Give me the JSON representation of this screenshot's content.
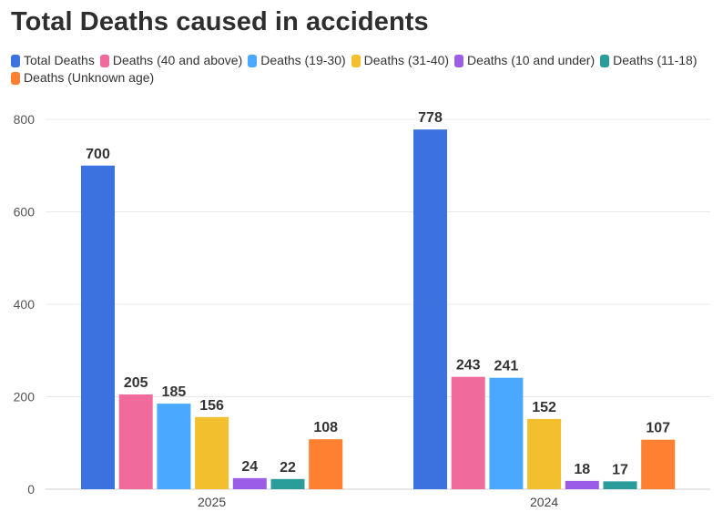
{
  "chart_data": {
    "type": "bar",
    "title": "Total Deaths caused in accidents",
    "xlabel": "",
    "ylabel": "",
    "ylim": [
      0,
      800
    ],
    "yticks": [
      0,
      200,
      400,
      600,
      800
    ],
    "tick_labels": [
      "0",
      "200",
      "400",
      "600",
      "800"
    ],
    "categories": [
      "2025",
      "2024"
    ],
    "legend_position": "top-left",
    "grid": true,
    "series": [
      {
        "name": "Total Deaths",
        "color": "#3b72e0",
        "values": [
          700,
          778
        ],
        "labels": [
          "700",
          "778"
        ]
      },
      {
        "name": "Deaths (40 and above)",
        "color": "#f06a9b",
        "values": [
          205,
          243
        ],
        "labels": [
          "205",
          "243"
        ]
      },
      {
        "name": "Deaths (19-30)",
        "color": "#4aa8ff",
        "values": [
          185,
          241
        ],
        "labels": [
          "185",
          "241"
        ]
      },
      {
        "name": "Deaths (31-40)",
        "color": "#f2c02e",
        "values": [
          156,
          152
        ],
        "labels": [
          "156",
          "152"
        ]
      },
      {
        "name": "Deaths (10 and under)",
        "color": "#9b5de5",
        "values": [
          24,
          18
        ],
        "labels": [
          "24",
          "18"
        ]
      },
      {
        "name": "Deaths (11-18)",
        "color": "#2a9d9a",
        "values": [
          22,
          17
        ],
        "labels": [
          "22",
          "17"
        ]
      },
      {
        "name": "Deaths (Unknown age)",
        "color": "#ff8030",
        "values": [
          108,
          107
        ],
        "labels": [
          "108",
          "107"
        ]
      }
    ]
  }
}
